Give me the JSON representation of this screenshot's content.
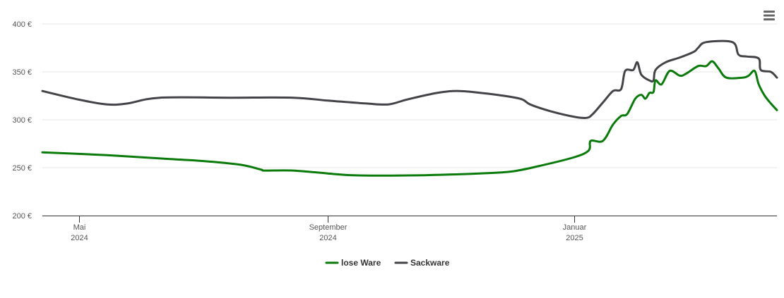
{
  "chart_data": {
    "type": "line",
    "title": "",
    "xlabel": "",
    "ylabel": "",
    "ylim": [
      200,
      400
    ],
    "yticks": [
      200,
      250,
      300,
      350,
      400
    ],
    "ytick_labels": [
      "200 €",
      "250 €",
      "300 €",
      "350 €",
      "400 €"
    ],
    "xlim": [
      "2024-04-13",
      "2025-04-11"
    ],
    "xticks": [
      {
        "date": "2024-05-01",
        "label1": "Mai",
        "label2": "2024"
      },
      {
        "date": "2024-09-01",
        "label1": "September",
        "label2": "2024"
      },
      {
        "date": "2025-01-01",
        "label1": "Januar",
        "label2": "2025"
      }
    ],
    "grid": true,
    "legend": "bottom-center",
    "series": [
      {
        "name": "lose Ware",
        "color": "#0a7a0a",
        "points": [
          [
            "2024-04-13",
            266
          ],
          [
            "2024-05-15",
            263
          ],
          [
            "2024-06-15",
            259
          ],
          [
            "2024-07-01",
            257
          ],
          [
            "2024-07-20",
            253
          ],
          [
            "2024-07-30",
            248
          ],
          [
            "2024-08-01",
            247
          ],
          [
            "2024-08-15",
            247
          ],
          [
            "2024-09-01",
            244
          ],
          [
            "2024-09-15",
            242
          ],
          [
            "2024-10-15",
            242
          ],
          [
            "2024-11-15",
            244
          ],
          [
            "2024-12-01",
            246
          ],
          [
            "2024-12-15",
            252
          ],
          [
            "2025-01-01",
            261
          ],
          [
            "2025-01-08",
            268
          ],
          [
            "2025-01-09",
            278
          ],
          [
            "2025-01-15",
            278
          ],
          [
            "2025-01-20",
            295
          ],
          [
            "2025-01-24",
            304
          ],
          [
            "2025-01-27",
            306
          ],
          [
            "2025-01-31",
            322
          ],
          [
            "2025-02-03",
            326
          ],
          [
            "2025-02-05",
            322
          ],
          [
            "2025-02-07",
            328
          ],
          [
            "2025-02-09",
            329
          ],
          [
            "2025-02-10",
            341
          ],
          [
            "2025-02-13",
            337
          ],
          [
            "2025-02-17",
            351
          ],
          [
            "2025-02-22",
            346
          ],
          [
            "2025-02-25",
            348
          ],
          [
            "2025-03-03",
            356
          ],
          [
            "2025-03-07",
            356
          ],
          [
            "2025-03-10",
            361
          ],
          [
            "2025-03-13",
            354
          ],
          [
            "2025-03-17",
            344
          ],
          [
            "2025-03-25",
            344
          ],
          [
            "2025-03-28",
            346
          ],
          [
            "2025-03-31",
            351
          ],
          [
            "2025-04-02",
            337
          ],
          [
            "2025-04-05",
            325
          ],
          [
            "2025-04-08",
            317
          ],
          [
            "2025-04-11",
            310
          ]
        ]
      },
      {
        "name": "Sackware",
        "color": "#434348",
        "points": [
          [
            "2024-04-13",
            330
          ],
          [
            "2024-05-01",
            321
          ],
          [
            "2024-05-15",
            316
          ],
          [
            "2024-05-25",
            317
          ],
          [
            "2024-06-10",
            323
          ],
          [
            "2024-07-15",
            323
          ],
          [
            "2024-08-15",
            323
          ],
          [
            "2024-09-01",
            320
          ],
          [
            "2024-09-20",
            317
          ],
          [
            "2024-10-01",
            316
          ],
          [
            "2024-10-10",
            321
          ],
          [
            "2024-10-25",
            328
          ],
          [
            "2024-11-05",
            330
          ],
          [
            "2024-11-20",
            327
          ],
          [
            "2024-12-05",
            322
          ],
          [
            "2024-12-10",
            316
          ],
          [
            "2024-12-20",
            309
          ],
          [
            "2025-01-01",
            303
          ],
          [
            "2025-01-07",
            302
          ],
          [
            "2025-01-10",
            306
          ],
          [
            "2025-01-15",
            318
          ],
          [
            "2025-01-20",
            330
          ],
          [
            "2025-01-24",
            332
          ],
          [
            "2025-01-26",
            351
          ],
          [
            "2025-01-30",
            352
          ],
          [
            "2025-02-01",
            360
          ],
          [
            "2025-02-03",
            347
          ],
          [
            "2025-02-07",
            341
          ],
          [
            "2025-02-09",
            341
          ],
          [
            "2025-02-10",
            352
          ],
          [
            "2025-02-15",
            360
          ],
          [
            "2025-02-22",
            365
          ],
          [
            "2025-03-01",
            371
          ],
          [
            "2025-03-03",
            375
          ],
          [
            "2025-03-07",
            381
          ],
          [
            "2025-03-20",
            381
          ],
          [
            "2025-03-23",
            368
          ],
          [
            "2025-03-27",
            366
          ],
          [
            "2025-04-02",
            364
          ],
          [
            "2025-04-03",
            352
          ],
          [
            "2025-04-08",
            350
          ],
          [
            "2025-04-11",
            344
          ]
        ]
      }
    ]
  },
  "toolbar": {
    "menu_icon": "hamburger-menu-icon"
  }
}
